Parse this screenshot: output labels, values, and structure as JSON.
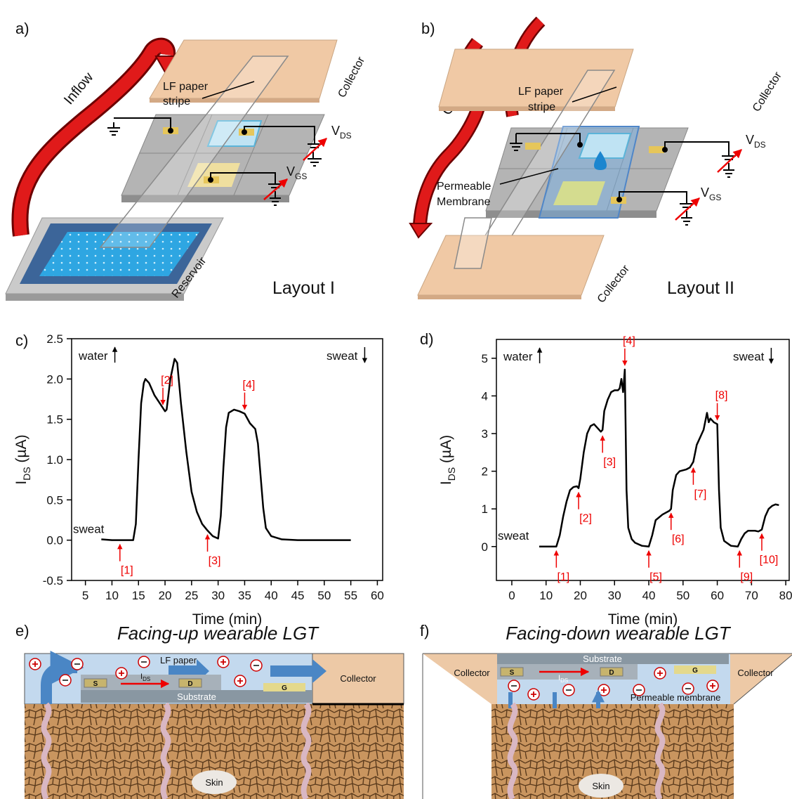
{
  "diagrams": {
    "a": {
      "label": "a)",
      "arrow": "Inflow",
      "collector": "Collector",
      "stripe": [
        "LF paper",
        "stripe"
      ],
      "vds": {
        "main": "V",
        "sub": "DS"
      },
      "vgs": {
        "main": "V",
        "sub": "GS"
      },
      "reservoir": "Reservoir",
      "layout": "Layout I"
    },
    "b": {
      "label": "b)",
      "arrow": "Outflow",
      "collector_top": "Collector",
      "stripe": [
        "LF paper",
        "stripe"
      ],
      "vds": {
        "main": "V",
        "sub": "DS"
      },
      "vgs": {
        "main": "V",
        "sub": "GS"
      },
      "membrane": [
        "Permeable",
        "Membrane"
      ],
      "collector_bottom": "Collector",
      "layout": "Layout II"
    },
    "e": {
      "label": "e)",
      "title": "Facing-up wearable LGT",
      "paper": "LF paper",
      "ids": {
        "main": "I",
        "sub": "DS"
      },
      "s": "S",
      "d": "D",
      "g": "G",
      "substrate": "Substrate",
      "collector": "Collector",
      "skin": "Skin"
    },
    "f": {
      "label": "f)",
      "title": "Facing-down wearable LGT",
      "collector_left": "Collector",
      "collector_right": "Collector",
      "substrate": "Substrate",
      "ids": {
        "main": "I",
        "sub": "DS"
      },
      "s": "S",
      "d": "D",
      "g": "G",
      "membrane": "Permeable membrane",
      "skin": "Skin"
    }
  },
  "chart_data": [
    {
      "type": "line",
      "panel_label": "c)",
      "xlabel": "Time (min)",
      "ylabel": {
        "main": "I",
        "sub": "DS",
        "rest": " (µA)"
      },
      "top_left_note": "water",
      "top_right_note": "sweat",
      "baseline_note": "sweat",
      "color": "#000000",
      "xlim": [
        2.4,
        61
      ],
      "ylim": [
        -0.5,
        2.5
      ],
      "xticks": [
        5,
        10,
        15,
        20,
        25,
        30,
        35,
        40,
        45,
        50,
        55,
        60
      ],
      "yticks": [
        -0.5,
        {
          "value": 0,
          "label": "0.0"
        },
        0.5,
        {
          "value": 1,
          "label": "1.0"
        },
        1.5,
        {
          "value": 2,
          "label": "2.0"
        },
        2.5
      ],
      "x": [
        8,
        10,
        12,
        14,
        14.5,
        15,
        15.5,
        16,
        16.3,
        17,
        18,
        19,
        20,
        20.3,
        21,
        21.8,
        22.3,
        23,
        24,
        25,
        26,
        27,
        28,
        29,
        30,
        30.5,
        31,
        31.5,
        32,
        33,
        34,
        35,
        36,
        37,
        37.5,
        38,
        38.5,
        39,
        40,
        42,
        45,
        50,
        55
      ],
      "values": [
        0.01,
        0.0,
        0.0,
        0.0,
        0.2,
        1.0,
        1.7,
        1.95,
        2.0,
        1.95,
        1.8,
        1.7,
        1.6,
        1.62,
        2.0,
        2.25,
        2.2,
        1.7,
        1.1,
        0.6,
        0.35,
        0.2,
        0.12,
        0.05,
        0.02,
        0.3,
        0.9,
        1.4,
        1.58,
        1.62,
        1.6,
        1.57,
        1.45,
        1.38,
        1.2,
        0.8,
        0.4,
        0.15,
        0.05,
        0.01,
        0.0,
        0.0,
        0.0
      ],
      "annotations": [
        {
          "text": "[1]",
          "x": 11.5,
          "y": 0.0,
          "direction": "up"
        },
        {
          "text": "[2]",
          "x": 19.6,
          "y": 1.63,
          "direction": "down"
        },
        {
          "text": "[3]",
          "x": 28,
          "y": 0.12,
          "direction": "up"
        },
        {
          "text": "[4]",
          "x": 35,
          "y": 1.57,
          "direction": "down"
        }
      ]
    },
    {
      "type": "line",
      "panel_label": "d)",
      "xlabel": "Time (min)",
      "ylabel": {
        "main": "I",
        "sub": "DS",
        "rest": " (µA)"
      },
      "top_left_note": "water",
      "top_right_note": "sweat",
      "baseline_note": "sweat",
      "color": "#000000",
      "xlim": [
        -4.5,
        81
      ],
      "ylim": [
        -0.9,
        5.5
      ],
      "xticks": [
        0,
        10,
        20,
        30,
        40,
        50,
        60,
        70,
        80
      ],
      "yticks": [
        0,
        1,
        2,
        3,
        4,
        5
      ],
      "x": [
        8,
        13,
        14,
        15,
        16,
        17,
        18,
        19,
        19.5,
        20,
        21,
        22,
        23,
        24,
        25,
        26,
        26.5,
        27,
        28,
        29,
        30,
        31,
        31.5,
        32,
        32.5,
        33,
        33.5,
        34,
        35,
        36,
        38,
        40,
        41,
        42,
        44,
        46,
        46.5,
        47,
        48,
        49,
        51,
        52,
        53,
        54,
        55,
        56,
        57,
        57.5,
        58,
        59,
        60,
        60.5,
        61,
        62,
        64,
        66,
        67,
        68,
        69,
        71,
        72,
        73,
        74,
        75,
        76,
        77,
        78
      ],
      "values": [
        0.0,
        0.0,
        0.3,
        0.8,
        1.2,
        1.5,
        1.58,
        1.6,
        1.55,
        1.8,
        2.5,
        3.0,
        3.2,
        3.25,
        3.15,
        3.05,
        3.1,
        3.6,
        3.9,
        4.1,
        4.15,
        4.15,
        4.2,
        4.45,
        4.1,
        4.7,
        1.5,
        0.5,
        0.2,
        0.1,
        0.02,
        0.0,
        0.3,
        0.7,
        0.85,
        0.95,
        1.0,
        1.5,
        1.9,
        2.0,
        2.05,
        2.1,
        2.25,
        2.7,
        2.9,
        3.1,
        3.55,
        3.3,
        3.4,
        3.3,
        3.25,
        1.5,
        0.5,
        0.15,
        0.02,
        0.0,
        0.2,
        0.35,
        0.42,
        0.42,
        0.4,
        0.45,
        0.8,
        1.0,
        1.08,
        1.12,
        1.1
      ],
      "annotations": [
        {
          "text": "[1]",
          "x": 13,
          "y": 0.0,
          "direction": "up"
        },
        {
          "text": "[2]",
          "x": 19.5,
          "y": 1.55,
          "direction": "up"
        },
        {
          "text": "[3]",
          "x": 26.5,
          "y": 3.05,
          "direction": "up"
        },
        {
          "text": "[4]",
          "x": 33,
          "y": 4.7,
          "direction": "down"
        },
        {
          "text": "[5]",
          "x": 40,
          "y": 0.0,
          "direction": "up"
        },
        {
          "text": "[6]",
          "x": 46.5,
          "y": 1.0,
          "direction": "up"
        },
        {
          "text": "[7]",
          "x": 53,
          "y": 2.2,
          "direction": "up"
        },
        {
          "text": "[8]",
          "x": 60,
          "y": 3.25,
          "direction": "down"
        },
        {
          "text": "[9]",
          "x": 66.5,
          "y": 0.0,
          "direction": "up"
        },
        {
          "text": "[10]",
          "x": 73,
          "y": 0.45,
          "direction": "up"
        }
      ]
    }
  ]
}
